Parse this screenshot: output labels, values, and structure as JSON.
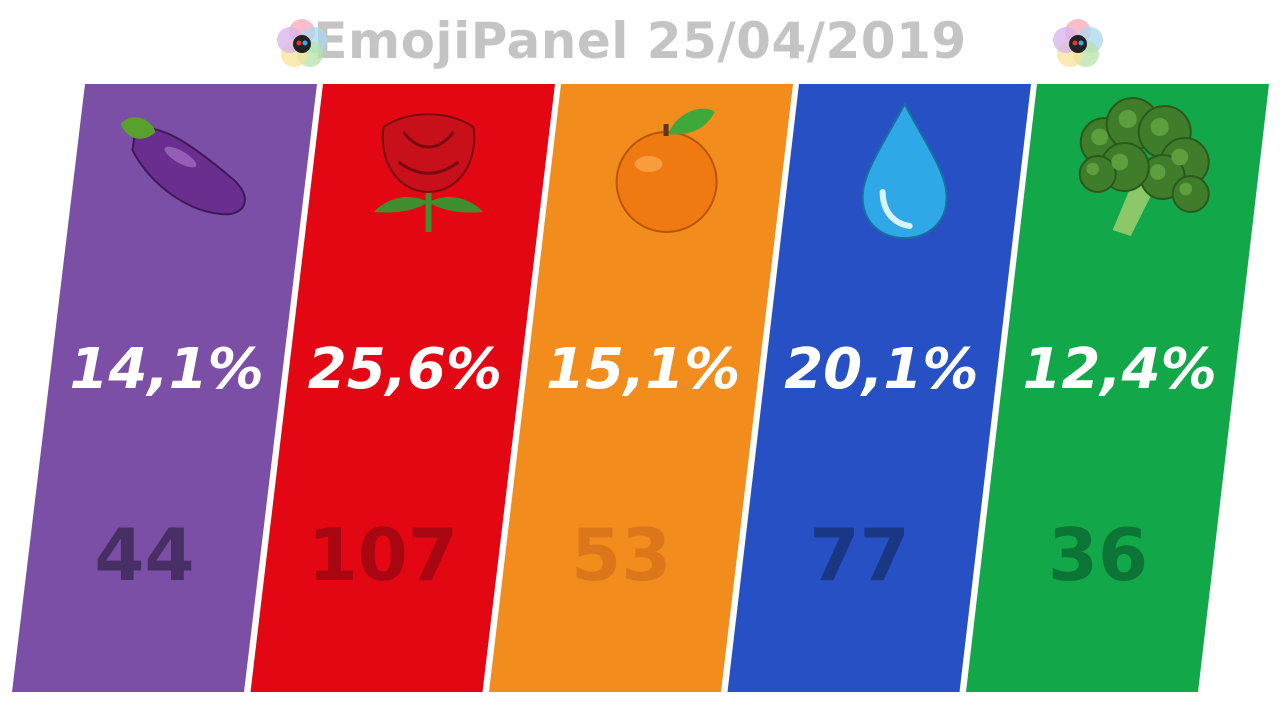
{
  "header": {
    "title": "EmojiPanel 25/04/2019",
    "logo_icon": "emojipanel-logo-icon"
  },
  "chart_data": {
    "type": "bar",
    "title": "EmojiPanel 25/04/2019",
    "categories": [
      "eggplant",
      "rose",
      "tangerine",
      "droplet",
      "broccoli"
    ],
    "values": [
      14.1,
      25.6,
      15.1,
      20.1,
      12.4
    ],
    "value_labels": [
      "14,1%",
      "25,6%",
      "15,1%",
      "20,1%",
      "12,4%"
    ],
    "seats": [
      44,
      107,
      53,
      77,
      36
    ],
    "seat_labels": [
      "44",
      "107",
      "53",
      "77",
      "36"
    ],
    "icons": [
      "eggplant-icon",
      "rose-icon",
      "tangerine-icon",
      "droplet-icon",
      "broccoli-icon"
    ],
    "colors": [
      "#7b4fa6",
      "#e30613",
      "#f28c1c",
      "#2750c4",
      "#12a84a"
    ],
    "seat_colors": [
      "#3f2a5a",
      "#9e0610",
      "#d9731a",
      "#173379",
      "#0b6b31"
    ],
    "legend": "none",
    "grid": false
  }
}
